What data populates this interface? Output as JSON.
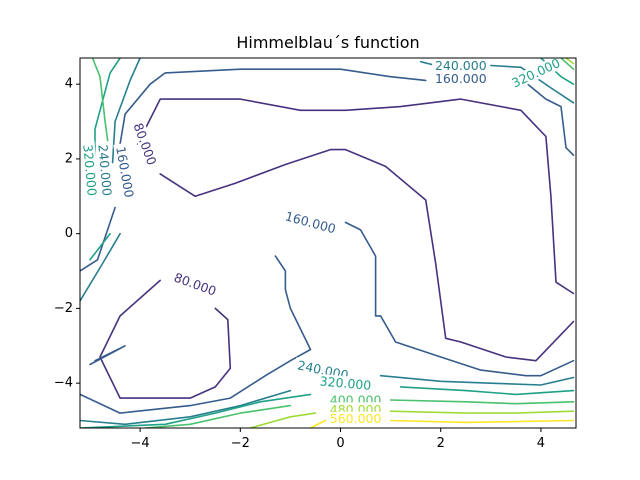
{
  "chart_data": {
    "type": "contour",
    "title": "Himmelblau´s function",
    "xlabel": "",
    "ylabel": "",
    "xlim": [
      -5.2,
      4.7
    ],
    "ylim": [
      -5.2,
      4.7
    ],
    "grid": false,
    "x_ticks": [
      -4,
      -2,
      0,
      2,
      4
    ],
    "y_ticks": [
      -4,
      -2,
      0,
      2,
      4
    ],
    "x_tick_labels": [
      "−4",
      "−2",
      "0",
      "2",
      "4"
    ],
    "y_tick_labels": [
      "−4",
      "−2",
      "0",
      "2",
      "4"
    ],
    "colormap": "viridis",
    "levels": [
      {
        "value": 80,
        "color": "#46327e",
        "label": "80.000",
        "paths": [
          [
            [
              -4.05,
              2.4
            ],
            [
              -3.6,
              3.6
            ],
            [
              -2.0,
              3.6
            ],
            [
              -0.8,
              3.3
            ],
            [
              0.1,
              3.3
            ],
            [
              1.2,
              3.4
            ],
            [
              2.4,
              3.6
            ],
            [
              3.6,
              3.3
            ],
            [
              4.1,
              2.6
            ],
            [
              4.2,
              1.0
            ],
            [
              4.3,
              -1.3
            ],
            [
              4.65,
              -1.6
            ]
          ],
          [
            [
              -3.6,
              1.6
            ],
            [
              -2.9,
              1.0
            ],
            [
              -2.1,
              1.35
            ],
            [
              -1.1,
              1.85
            ],
            [
              -0.2,
              2.25
            ],
            [
              0.1,
              2.25
            ],
            [
              0.9,
              1.8
            ],
            [
              1.7,
              0.9
            ],
            [
              1.9,
              -0.8
            ],
            [
              2.1,
              -2.8
            ],
            [
              2.4,
              -2.9
            ],
            [
              3.3,
              -3.3
            ],
            [
              3.9,
              -3.4
            ],
            [
              4.4,
              -2.7
            ],
            [
              4.65,
              -2.35
            ]
          ],
          [
            [
              -3.6,
              -1.25
            ],
            [
              -4.4,
              -2.2
            ],
            [
              -4.8,
              -3.3
            ],
            [
              -4.4,
              -4.4
            ],
            [
              -3.0,
              -4.4
            ],
            [
              -2.5,
              -4.1
            ],
            [
              -2.2,
              -3.6
            ],
            [
              -2.25,
              -2.3
            ],
            [
              -2.5,
              -2.0
            ]
          ]
        ],
        "labels": [
          {
            "text": "80.000",
            "x": -3.9,
            "y": 2.4,
            "angle": 70
          },
          {
            "text": "80.000",
            "x": -2.9,
            "y": -1.35,
            "angle": 20
          }
        ]
      },
      {
        "value": 160,
        "color": "#365c8d",
        "label": "160.000",
        "paths": [
          [
            [
              -4.45,
              2.0
            ],
            [
              -4.3,
              3.2
            ],
            [
              -3.8,
              4.0
            ],
            [
              -3.5,
              4.3
            ],
            [
              -2.0,
              4.4
            ],
            [
              -1.2,
              4.4
            ],
            [
              0.0,
              4.4
            ],
            [
              1.0,
              4.2
            ],
            [
              1.7,
              4.1
            ]
          ],
          [
            [
              3.6,
              4.15
            ],
            [
              4.1,
              3.6
            ],
            [
              4.4,
              3.4
            ],
            [
              4.5,
              2.3
            ],
            [
              4.65,
              2.1
            ]
          ],
          [
            [
              -4.5,
              0.7
            ],
            [
              -4.85,
              -0.7
            ],
            [
              -5.2,
              -1.0
            ]
          ],
          [
            [
              -5.0,
              -3.5
            ],
            [
              -4.3,
              -3.0
            ],
            [
              -4.9,
              -3.4
            ]
          ],
          [
            [
              -5.2,
              -4.3
            ],
            [
              -4.4,
              -4.8
            ],
            [
              -3.0,
              -4.6
            ],
            [
              -2.2,
              -4.4
            ],
            [
              -1.5,
              -3.8
            ],
            [
              -1.0,
              -3.4
            ],
            [
              -0.6,
              -3.1
            ],
            [
              -1.0,
              -2.0
            ],
            [
              -1.1,
              -1.5
            ],
            [
              -1.1,
              -1.0
            ],
            [
              -1.3,
              -0.6
            ]
          ],
          [
            [
              0.1,
              0.3
            ],
            [
              0.4,
              0.1
            ],
            [
              0.7,
              -0.6
            ],
            [
              0.7,
              -2.2
            ],
            [
              0.8,
              -2.2
            ],
            [
              1.1,
              -2.9
            ],
            [
              2.0,
              -3.3
            ],
            [
              2.8,
              -3.65
            ],
            [
              3.7,
              -3.8
            ],
            [
              4.0,
              -3.8
            ],
            [
              4.65,
              -3.4
            ]
          ]
        ],
        "labels": [
          {
            "text": "160.000",
            "x": -4.3,
            "y": 1.65,
            "angle": 80
          },
          {
            "text": "160.000",
            "x": 2.4,
            "y": 4.15,
            "angle": 0
          },
          {
            "text": "160.000",
            "x": -0.6,
            "y": 0.3,
            "angle": 15
          }
        ]
      },
      {
        "value": 240,
        "color": "#277f8e",
        "label": "240.000",
        "paths": [
          [
            [
              -4.55,
              1.9
            ],
            [
              -4.5,
              3.0
            ],
            [
              -4.2,
              4.1
            ],
            [
              -4.0,
              4.7
            ]
          ],
          [
            [
              1.6,
              4.6
            ],
            [
              1.9,
              4.5
            ]
          ],
          [
            [
              3.0,
              4.5
            ],
            [
              3.6,
              4.45
            ],
            [
              4.2,
              3.9
            ],
            [
              4.65,
              3.5
            ]
          ],
          [
            [
              -4.4,
              0.0
            ],
            [
              -4.75,
              -0.8
            ],
            [
              -5.2,
              -1.8
            ]
          ],
          [
            [
              -5.2,
              -5.0
            ],
            [
              -4.3,
              -5.1
            ],
            [
              -3.0,
              -4.9
            ],
            [
              -2.0,
              -4.6
            ],
            [
              -1.0,
              -4.2
            ]
          ],
          [
            [
              0.8,
              -3.8
            ],
            [
              2.0,
              -3.95
            ],
            [
              3.0,
              -4.0
            ],
            [
              4.0,
              -4.05
            ],
            [
              4.65,
              -3.85
            ]
          ]
        ],
        "labels": [
          {
            "text": "240.000",
            "x": -4.7,
            "y": 1.7,
            "angle": 85
          },
          {
            "text": "240.000",
            "x": 2.4,
            "y": 4.5,
            "angle": 0
          },
          {
            "text": "240.000",
            "x": -0.35,
            "y": -3.65,
            "angle": 12
          }
        ]
      },
      {
        "value": 320,
        "color": "#1fa187",
        "label": "320.000",
        "paths": [
          [
            [
              -4.9,
              1.3
            ],
            [
              -4.9,
              2.8
            ],
            [
              -4.6,
              4.3
            ],
            [
              -4.4,
              4.7
            ]
          ],
          [
            [
              -4.6,
              0.0
            ],
            [
              -5.0,
              -0.7
            ]
          ],
          [
            [
              -5.2,
              -5.2
            ],
            [
              -3.5,
              -5.1
            ],
            [
              -2.5,
              -4.8
            ],
            [
              -1.6,
              -4.5
            ],
            [
              -0.6,
              -4.3
            ]
          ],
          [
            [
              1.2,
              -4.1
            ],
            [
              2.5,
              -4.2
            ],
            [
              3.5,
              -4.3
            ],
            [
              4.65,
              -4.2
            ]
          ],
          [
            [
              4.0,
              4.7
            ],
            [
              4.4,
              4.2
            ],
            [
              4.65,
              4.0
            ]
          ]
        ],
        "labels": [
          {
            "text": "320.000",
            "x": -5.0,
            "y": 1.7,
            "angle": 85
          },
          {
            "text": "320.000",
            "x": 3.9,
            "y": 4.3,
            "angle": -25
          },
          {
            "text": "320.000",
            "x": 0.1,
            "y": -4.0,
            "angle": 5
          }
        ]
      },
      {
        "value": 400,
        "color": "#4ac16d",
        "label": "400.000",
        "paths": [
          [
            [
              -4.95,
              4.7
            ],
            [
              -4.8,
              4.2
            ],
            [
              -4.7,
              3.0
            ],
            [
              -4.6,
              2.0
            ]
          ],
          [
            [
              -3.9,
              -5.2
            ],
            [
              -3.0,
              -5.1
            ],
            [
              -2.0,
              -4.8
            ],
            [
              -1.0,
              -4.6
            ]
          ],
          [
            [
              1.0,
              -4.45
            ],
            [
              2.5,
              -4.5
            ],
            [
              3.5,
              -4.55
            ],
            [
              4.65,
              -4.5
            ]
          ],
          [
            [
              4.4,
              4.7
            ],
            [
              4.65,
              4.4
            ]
          ]
        ],
        "labels": [
          {
            "text": "400.000",
            "x": 0.3,
            "y": -4.45,
            "angle": 0
          }
        ]
      },
      {
        "value": 480,
        "color": "#a0da39",
        "label": "480.000",
        "paths": [
          [
            [
              -1.8,
              -5.2
            ],
            [
              -1.0,
              -4.9
            ],
            [
              -0.5,
              -4.8
            ]
          ],
          [
            [
              1.0,
              -4.75
            ],
            [
              2.5,
              -4.8
            ],
            [
              3.5,
              -4.8
            ],
            [
              4.65,
              -4.75
            ]
          ],
          [
            [
              4.5,
              4.7
            ],
            [
              4.65,
              4.55
            ]
          ]
        ],
        "labels": [
          {
            "text": "480.000",
            "x": 0.3,
            "y": -4.7,
            "angle": 0
          }
        ]
      },
      {
        "value": 560,
        "color": "#fde725",
        "label": "560.000",
        "paths": [
          [
            [
              -0.6,
              -5.2
            ],
            [
              -0.3,
              -5.0
            ]
          ],
          [
            [
              1.0,
              -5.0
            ],
            [
              2.5,
              -5.05
            ],
            [
              4.65,
              -5.0
            ]
          ]
        ],
        "labels": [
          {
            "text": "560.000",
            "x": 0.3,
            "y": -4.95,
            "angle": 0
          }
        ]
      }
    ]
  }
}
